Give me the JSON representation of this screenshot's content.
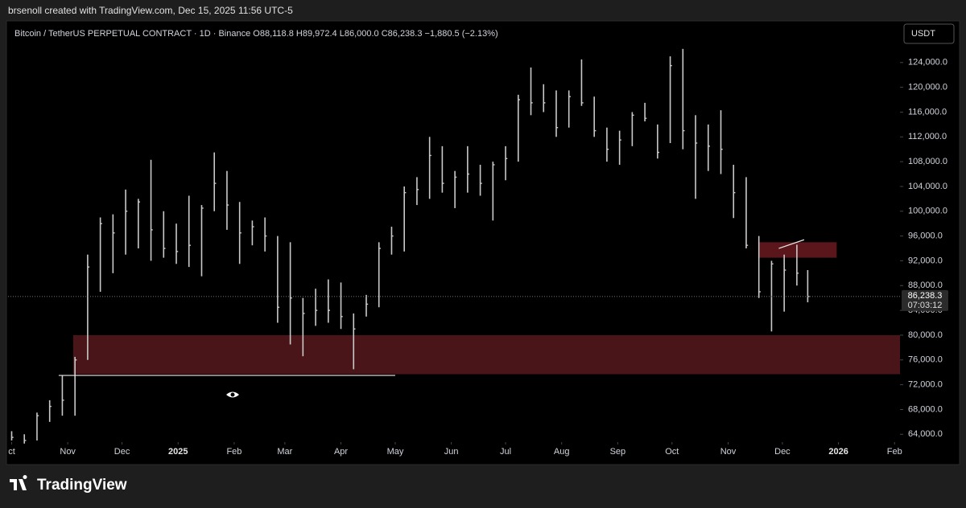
{
  "chart_data": {
    "type": "ohlc",
    "title": "brsenoll created with TradingView.com, Dec 15, 2025 11:56 UTC-5",
    "subtitle": "Bitcoin / TetherUS PERPETUAL CONTRACT · 1D · Binance  O88,118.8  H89,972.4  L86,000.0  C86,238.3  −1,880.5 (−2.13%)",
    "currency": "USDT",
    "brand": "TradingView",
    "color": "#c9c9c9",
    "x": [
      0,
      7,
      14,
      21,
      28,
      35,
      42,
      49,
      56,
      63,
      70,
      77,
      84,
      91,
      98,
      105,
      112,
      119,
      126,
      133,
      140,
      147,
      154,
      161,
      168,
      175,
      182,
      189,
      196,
      203,
      210,
      217,
      224,
      231,
      238,
      245,
      252,
      259,
      266,
      273,
      280,
      287,
      294,
      301,
      308,
      315,
      322,
      329,
      336,
      343,
      350,
      357,
      364,
      371,
      378,
      385,
      392,
      399,
      406,
      413,
      420,
      427,
      434,
      440
    ],
    "high": [
      64500,
      64000,
      67500,
      69500,
      73500,
      76500,
      93000,
      99000,
      99500,
      103500,
      102000,
      108300,
      100000,
      98000,
      102500,
      101000,
      109500,
      106500,
      101500,
      98500,
      99000,
      96000,
      95000,
      86000,
      87500,
      89000,
      88500,
      83500,
      86500,
      95000,
      97500,
      104000,
      105500,
      112000,
      110500,
      106500,
      110500,
      107500,
      108000,
      110500,
      118800,
      123200,
      120500,
      119500,
      119500,
      124500,
      118500,
      113500,
      113000,
      116000,
      117500,
      114000,
      125000,
      126200,
      115500,
      114000,
      116300,
      107500,
      105500,
      96000,
      92000,
      93000,
      94600,
      90500
    ],
    "low": [
      63000,
      62500,
      63000,
      66000,
      67000,
      67000,
      76000,
      87000,
      90000,
      93000,
      94000,
      92000,
      92500,
      91500,
      91000,
      89500,
      100000,
      97000,
      91500,
      94500,
      93500,
      82000,
      78500,
      76600,
      81500,
      82000,
      81000,
      74500,
      83000,
      84500,
      93000,
      93500,
      101000,
      102000,
      103000,
      100500,
      103000,
      102500,
      98500,
      105000,
      108000,
      115500,
      116000,
      112000,
      113500,
      117000,
      112000,
      108000,
      107500,
      110500,
      114500,
      108500,
      111000,
      110000,
      102000,
      106500,
      106000,
      98900,
      94000,
      86000,
      80600,
      83800,
      88000,
      85300
    ],
    "close": [
      63500,
      63000,
      67000,
      68500,
      69500,
      76000,
      91000,
      98000,
      96500,
      100000,
      101500,
      97000,
      94000,
      93500,
      94500,
      100500,
      104500,
      101000,
      96500,
      97500,
      96000,
      84500,
      86000,
      83500,
      84000,
      84000,
      83000,
      81000,
      85000,
      94000,
      96000,
      103000,
      103500,
      109000,
      104500,
      105500,
      106000,
      104500,
      107500,
      108500,
      118000,
      117500,
      117500,
      113500,
      118500,
      117500,
      113000,
      110000,
      111500,
      115500,
      115000,
      109500,
      123500,
      113000,
      111000,
      110500,
      110000,
      103000,
      94500,
      87000,
      91500,
      90500,
      90000,
      86238.3
    ],
    "xlim": [
      -2,
      491
    ],
    "xticks": [
      {
        "value": 0,
        "label": "ct"
      },
      {
        "value": 31,
        "label": "Nov"
      },
      {
        "value": 61,
        "label": "Dec"
      },
      {
        "value": 92,
        "label": "2025"
      },
      {
        "value": 123,
        "label": "Feb"
      },
      {
        "value": 151,
        "label": "Mar"
      },
      {
        "value": 182,
        "label": "Apr"
      },
      {
        "value": 212,
        "label": "May"
      },
      {
        "value": 243,
        "label": "Jun"
      },
      {
        "value": 273,
        "label": "Jul"
      },
      {
        "value": 304,
        "label": "Aug"
      },
      {
        "value": 335,
        "label": "Sep"
      },
      {
        "value": 365,
        "label": "Oct"
      },
      {
        "value": 396,
        "label": "Nov"
      },
      {
        "value": 426,
        "label": "Dec"
      },
      {
        "value": 457,
        "label": "2026"
      },
      {
        "value": 488,
        "label": "Feb"
      }
    ],
    "ylim": [
      63000,
      130200
    ],
    "yticks": [
      {
        "value": 64000,
        "label": "64,000.0"
      },
      {
        "value": 68000,
        "label": "68,000.0"
      },
      {
        "value": 72000,
        "label": "72,000.0"
      },
      {
        "value": 76000,
        "label": "76,000.0"
      },
      {
        "value": 80000,
        "label": "80,000.0"
      },
      {
        "value": 84000,
        "label": "84,000.0"
      },
      {
        "value": 88000,
        "label": "88,000.0"
      },
      {
        "value": 92000,
        "label": "92,000.0"
      },
      {
        "value": 96000,
        "label": "96,000.0"
      },
      {
        "value": 100000,
        "label": "100,000.0"
      },
      {
        "value": 104000,
        "label": "104,000.0"
      },
      {
        "value": 108000,
        "label": "108,000.0"
      },
      {
        "value": 112000,
        "label": "112,000.0"
      },
      {
        "value": 116000,
        "label": "116,000.0"
      },
      {
        "value": 120000,
        "label": "120,000.0"
      },
      {
        "value": 124000,
        "label": "124,000.0"
      }
    ],
    "last_price": {
      "value": 86238.3,
      "label": "86,238.3"
    },
    "countdown": "07:03:12",
    "zones": [
      {
        "x": [
          34,
          491
        ],
        "y": [
          73700,
          80000
        ],
        "color": "#4a1519"
      },
      {
        "x": [
          413,
          456
        ],
        "y": [
          92500,
          95000
        ],
        "color": "#5a161b"
      }
    ],
    "lines": [
      {
        "x": [
          26,
          212
        ],
        "y": [
          73500,
          73500
        ],
        "color": "#e8e8e8"
      },
      {
        "x": [
          424,
          438
        ],
        "y": [
          94000,
          95400
        ],
        "color": "#e8e8e8"
      }
    ]
  }
}
